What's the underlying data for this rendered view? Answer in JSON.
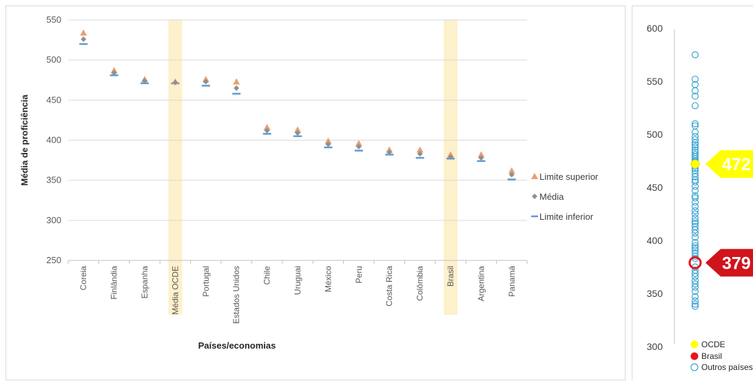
{
  "chart_data": [
    {
      "type": "scatter",
      "title": "",
      "xlabel": "Países/economias",
      "ylabel": "Média de proficiência",
      "ylim": [
        250,
        550
      ],
      "yticks": [
        250,
        300,
        350,
        400,
        450,
        500,
        550
      ],
      "grid": true,
      "legend_position": "right",
      "highlighted_categories": [
        "Média OCDE",
        "Brasil"
      ],
      "highlight_color": "#fdf0cc",
      "categories": [
        "Coreia",
        "Finlândia",
        "Espanha",
        "Média OCDE",
        "Portugal",
        "Estados Unidos",
        "Chile",
        "Uruguai",
        "México",
        "Peru",
        "Costa Rica",
        "Colômbia",
        "Brasil",
        "Argentina",
        "Panamá"
      ],
      "series": [
        {
          "name": "Limite superior",
          "marker": "triangle",
          "color": "#e8a070",
          "values": [
            534,
            487,
            476,
            473,
            476,
            473,
            416,
            413,
            399,
            396,
            388,
            388,
            382,
            382,
            362
          ]
        },
        {
          "name": "Média",
          "marker": "diamond",
          "color": "#909090",
          "values": [
            526,
            484,
            474,
            472,
            473,
            465,
            412,
            409,
            395,
            392,
            385,
            383,
            379,
            378,
            357
          ]
        },
        {
          "name": "Limite inferior",
          "marker": "dash",
          "color": "#5b9bd5",
          "values": [
            520,
            481,
            471,
            471,
            468,
            458,
            408,
            405,
            391,
            387,
            382,
            378,
            377,
            374,
            351
          ]
        }
      ]
    },
    {
      "type": "scatter",
      "title": "",
      "xlabel": "",
      "ylabel": "",
      "ylim": [
        300,
        600
      ],
      "yticks": [
        300,
        350,
        400,
        450,
        500,
        550,
        600
      ],
      "grid": false,
      "legend_position": "bottom",
      "series": [
        {
          "name": "OCDE",
          "color": "#ffff00",
          "values": [
            472
          ]
        },
        {
          "name": "Brasil",
          "color": "#e8141c",
          "values": [
            379
          ]
        },
        {
          "name": "Outros países",
          "color": "#3ba3d0",
          "values": [
            575,
            552,
            547,
            541,
            536,
            527,
            510,
            508,
            502,
            498,
            495,
            492,
            490,
            488,
            485,
            483,
            481,
            479,
            477,
            475,
            474,
            470,
            468,
            466,
            463,
            460,
            457,
            455,
            451,
            447,
            442,
            440,
            436,
            432,
            428,
            425,
            421,
            418,
            416,
            413,
            410,
            407,
            403,
            398,
            395,
            393,
            391,
            388,
            385,
            383,
            375,
            372,
            369,
            366,
            362,
            359,
            356,
            352,
            347,
            343,
            340,
            338
          ]
        }
      ],
      "annotations": [
        {
          "label": "472",
          "value": 472,
          "color": "#ffff00",
          "text_color": "#ffffff"
        },
        {
          "label": "379",
          "value": 379,
          "color": "#d0141c",
          "text_color": "#ffffff"
        }
      ]
    }
  ]
}
